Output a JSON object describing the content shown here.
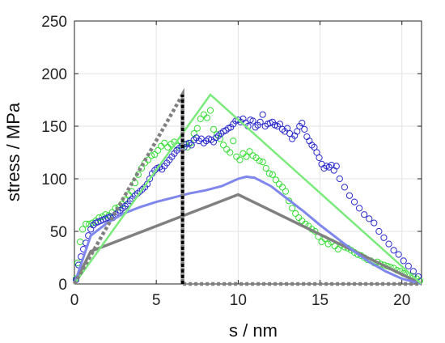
{
  "chart_data": {
    "type": "scatter",
    "title": "",
    "xlabel": "s / nm",
    "ylabel": "stress / MPa",
    "xlim": [
      0,
      21.2
    ],
    "ylim": [
      0,
      250
    ],
    "xticks": [
      0,
      5,
      10,
      15,
      20
    ],
    "yticks": [
      0,
      50,
      100,
      150,
      200,
      250
    ],
    "grid": true,
    "legend": "none",
    "colors": {
      "grey": "#808080",
      "green": "#7aea7a",
      "blue": "#7f86ec",
      "black": "#000000",
      "green_marker": "#33dd33",
      "blue_marker": "#2a2acc"
    },
    "lines": [
      {
        "color": "grey",
        "style": "solid",
        "width": 3.5,
        "x": [
          0,
          1,
          10,
          21.2
        ],
        "y": [
          0,
          31,
          85,
          0
        ]
      },
      {
        "color": "blue",
        "style": "solid",
        "width": 3.0,
        "x": [
          0,
          1,
          2,
          3,
          4,
          5,
          6,
          7,
          8,
          9,
          10,
          10.5,
          11,
          12,
          13,
          14,
          15,
          16,
          17,
          18,
          19,
          20,
          21.2
        ],
        "y": [
          0,
          46,
          58,
          67,
          73,
          78,
          82,
          86,
          89,
          93,
          100,
          102,
          101,
          93,
          81,
          69,
          56,
          44,
          32,
          21,
          12,
          5,
          0
        ]
      },
      {
        "color": "green",
        "style": "solid",
        "width": 2.5,
        "x": [
          0,
          8.3,
          21.2
        ],
        "y": [
          0,
          180,
          0
        ]
      },
      {
        "color": "grey",
        "style": "dotted",
        "width": 4.5,
        "x": [
          0,
          6.6,
          6.6,
          21.2
        ],
        "y": [
          0,
          180,
          0,
          0
        ]
      },
      {
        "color": "black",
        "style": "dotted",
        "width": 4.0,
        "x": [
          6.6,
          6.6
        ],
        "y": [
          0,
          180
        ]
      }
    ],
    "series": [
      {
        "color": "green_marker",
        "x": [
          0.1,
          0.2,
          0.35,
          0.5,
          0.7,
          0.9,
          1.1,
          1.3,
          1.5,
          1.7,
          1.9,
          2.1,
          2.3,
          2.5,
          2.7,
          2.9,
          3.1,
          3.3,
          3.5,
          3.7,
          3.9,
          4.1,
          4.3,
          4.5,
          4.7,
          4.9,
          5.1,
          5.3,
          5.5,
          5.7,
          5.9,
          6.1,
          6.3,
          6.5,
          6.7,
          6.9,
          7.1,
          7.3,
          7.5,
          7.7,
          7.9,
          8.1,
          8.3,
          8.5,
          8.7,
          8.9,
          9.1,
          9.3,
          9.5,
          9.7,
          9.9,
          10.1,
          10.3,
          10.5,
          10.7,
          10.9,
          11.1,
          11.3,
          11.5,
          11.7,
          11.9,
          12.1,
          12.3,
          12.5,
          12.7,
          12.9,
          13.1,
          13.3,
          13.5,
          13.7,
          13.9,
          14.1,
          14.3,
          14.5,
          14.7,
          14.9,
          15.1,
          15.3,
          15.5,
          15.7,
          15.9,
          16.1,
          16.3,
          16.5,
          16.7,
          16.9,
          17.1,
          17.3,
          17.5,
          17.7,
          17.9,
          18.1,
          18.3,
          18.5,
          18.7,
          18.9,
          19.1,
          19.3,
          19.5,
          19.7,
          19.9,
          20.1,
          20.3,
          20.5,
          20.7,
          20.9,
          21.1
        ],
        "y": [
          5,
          20,
          40,
          52,
          57,
          57,
          58,
          60,
          63,
          64,
          66,
          65,
          68,
          72,
          73,
          76,
          80,
          85,
          88,
          96,
          104,
          110,
          115,
          118,
          122,
          123,
          127,
          131,
          134,
          130,
          133,
          135,
          131,
          136,
          133,
          130,
          134,
          143,
          148,
          157,
          161,
          158,
          165,
          147,
          142,
          138,
          132,
          128,
          125,
          136,
          121,
          118,
          124,
          121,
          126,
          122,
          120,
          117,
          116,
          110,
          105,
          104,
          99,
          95,
          92,
          88,
          79,
          72,
          67,
          63,
          60,
          57,
          55,
          52,
          50,
          45,
          40,
          43,
          38,
          40,
          36,
          33,
          37,
          35,
          34,
          32,
          30,
          28,
          27,
          25,
          23,
          22,
          20,
          21,
          19,
          18,
          17,
          16,
          15,
          13,
          12,
          10,
          9,
          8,
          7,
          5,
          3
        ]
      },
      {
        "color": "blue_marker",
        "x": [
          0.1,
          0.25,
          0.4,
          0.55,
          0.7,
          0.85,
          1.0,
          1.15,
          1.3,
          1.45,
          1.6,
          1.75,
          1.9,
          2.05,
          2.2,
          2.35,
          2.5,
          2.65,
          2.8,
          2.95,
          3.1,
          3.25,
          3.4,
          3.55,
          3.7,
          3.85,
          4.0,
          4.15,
          4.3,
          4.45,
          4.6,
          4.75,
          4.9,
          5.05,
          5.2,
          5.35,
          5.5,
          5.65,
          5.8,
          5.95,
          6.1,
          6.25,
          6.4,
          6.55,
          6.7,
          6.85,
          7.0,
          7.15,
          7.3,
          7.45,
          7.6,
          7.75,
          7.9,
          8.05,
          8.2,
          8.35,
          8.5,
          8.65,
          8.8,
          8.95,
          9.1,
          9.25,
          9.4,
          9.55,
          9.7,
          9.85,
          10.0,
          10.15,
          10.3,
          10.45,
          10.6,
          10.75,
          10.9,
          11.05,
          11.2,
          11.35,
          11.5,
          11.65,
          11.8,
          11.95,
          12.1,
          12.25,
          12.4,
          12.55,
          12.7,
          12.85,
          13.0,
          13.15,
          13.3,
          13.45,
          13.6,
          13.75,
          13.9,
          14.05,
          14.2,
          14.35,
          14.5,
          14.65,
          14.8,
          14.95,
          15.1,
          15.25,
          15.4,
          15.55,
          15.7,
          15.85,
          16.0,
          16.2,
          16.5,
          16.8,
          17.1,
          17.4,
          17.7,
          18.0,
          18.3,
          18.6,
          18.9,
          19.2,
          19.5,
          19.8,
          20.1,
          20.4,
          20.7,
          21.0
        ],
        "y": [
          4,
          18,
          26,
          33,
          39,
          46,
          52,
          56,
          58,
          59,
          60,
          61,
          62,
          63,
          64,
          63,
          66,
          68,
          70,
          72,
          74,
          76,
          79,
          81,
          84,
          86,
          88,
          90,
          92,
          95,
          100,
          105,
          108,
          110,
          111,
          109,
          112,
          115,
          118,
          121,
          124,
          127,
          129,
          131,
          130,
          133,
          134,
          132,
          137,
          139,
          136,
          138,
          134,
          136,
          138,
          137,
          135,
          139,
          141,
          143,
          145,
          146,
          148,
          149,
          152,
          155,
          156,
          154,
          157,
          153,
          150,
          156,
          155,
          149,
          151,
          154,
          161,
          150,
          152,
          153,
          154,
          151,
          150,
          152,
          147,
          145,
          148,
          143,
          138,
          141,
          145,
          150,
          153,
          147,
          140,
          136,
          132,
          130,
          125,
          120,
          114,
          110,
          112,
          111,
          113,
          108,
          112,
          100,
          92,
          84,
          78,
          72,
          66,
          62,
          58,
          50,
          44,
          38,
          32,
          28,
          22,
          17,
          12,
          7
        ]
      }
    ]
  }
}
